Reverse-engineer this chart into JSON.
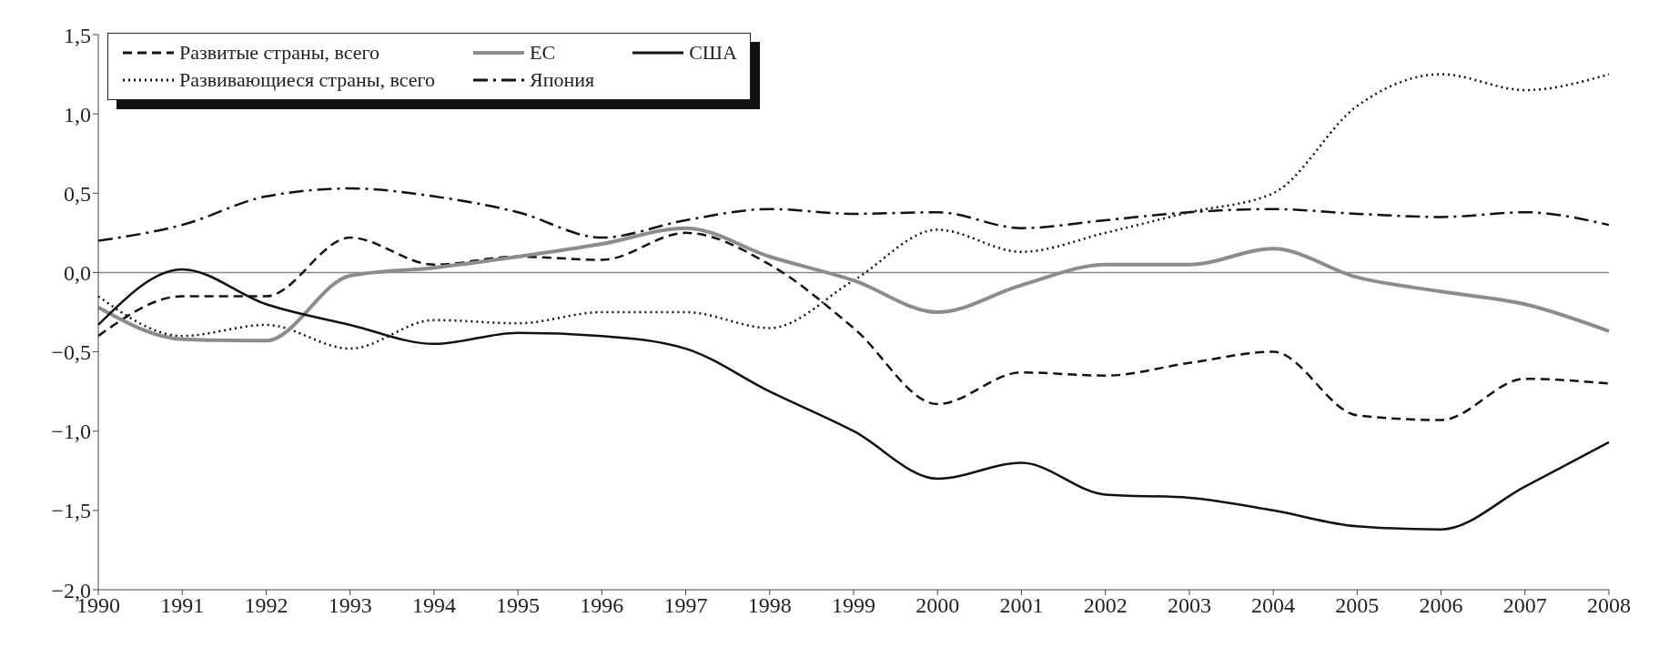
{
  "chart_data": {
    "type": "line",
    "categories": [
      "1990",
      "1991",
      "1992",
      "1993",
      "1994",
      "1995",
      "1996",
      "1997",
      "1998",
      "1999",
      "2000",
      "2001",
      "2002",
      "2003",
      "2004",
      "2005",
      "2006",
      "2007",
      "2008"
    ],
    "series": [
      {
        "name": "Развитые страны,  всего",
        "color": "#111111",
        "line_style": "dashed",
        "values": [
          -0.4,
          -0.15,
          -0.15,
          0.22,
          0.05,
          0.1,
          0.08,
          0.25,
          0.05,
          -0.35,
          -0.83,
          -0.63,
          -0.65,
          -0.57,
          -0.5,
          -0.9,
          -0.93,
          -0.67,
          -0.7
        ]
      },
      {
        "name": "Развивающиеся страны,  всего",
        "color": "#111111",
        "line_style": "dotted",
        "values": [
          -0.15,
          -0.4,
          -0.33,
          -0.48,
          -0.3,
          -0.32,
          -0.25,
          -0.25,
          -0.35,
          -0.05,
          0.27,
          0.13,
          0.25,
          0.38,
          0.5,
          1.05,
          1.25,
          1.15,
          1.25
        ]
      },
      {
        "name": "ЕС",
        "color": "#8c8c8c",
        "line_style": "solid",
        "values": [
          -0.22,
          -0.42,
          -0.43,
          -0.02,
          0.03,
          0.1,
          0.18,
          0.28,
          0.1,
          -0.05,
          -0.25,
          -0.08,
          0.05,
          0.05,
          0.15,
          -0.03,
          -0.12,
          -0.2,
          -0.37
        ]
      },
      {
        "name": "Япония",
        "color": "#111111",
        "line_style": "dashdot",
        "values": [
          0.2,
          0.3,
          0.48,
          0.53,
          0.48,
          0.38,
          0.22,
          0.33,
          0.4,
          0.37,
          0.38,
          0.28,
          0.33,
          0.38,
          0.4,
          0.37,
          0.35,
          0.38,
          0.3
        ]
      },
      {
        "name": "США",
        "color": "#111111",
        "line_style": "solid",
        "values": [
          -0.33,
          0.02,
          -0.2,
          -0.33,
          -0.45,
          -0.38,
          -0.4,
          -0.48,
          -0.75,
          -1.0,
          -1.3,
          -1.2,
          -1.4,
          -1.42,
          -1.5,
          -1.6,
          -1.62,
          -1.35,
          -1.07
        ]
      }
    ],
    "ylim": [
      -2.0,
      1.5
    ],
    "yticks": [
      {
        "value": -2.0,
        "label": "−2,0"
      },
      {
        "value": -1.5,
        "label": "−1,5"
      },
      {
        "value": -1.0,
        "label": "−1,0"
      },
      {
        "value": -0.5,
        "label": "−0,5"
      },
      {
        "value": 0,
        "label": "0,0"
      },
      {
        "value": 0.5,
        "label": "0,5"
      },
      {
        "value": 1.0,
        "label": "1,0"
      },
      {
        "value": 1.5,
        "label": "1,5"
      }
    ],
    "ref_lines": [
      {
        "axis": "y",
        "value": 0,
        "color": "#888888"
      }
    ],
    "grid": false,
    "legend": "top left",
    "marker": "none"
  }
}
